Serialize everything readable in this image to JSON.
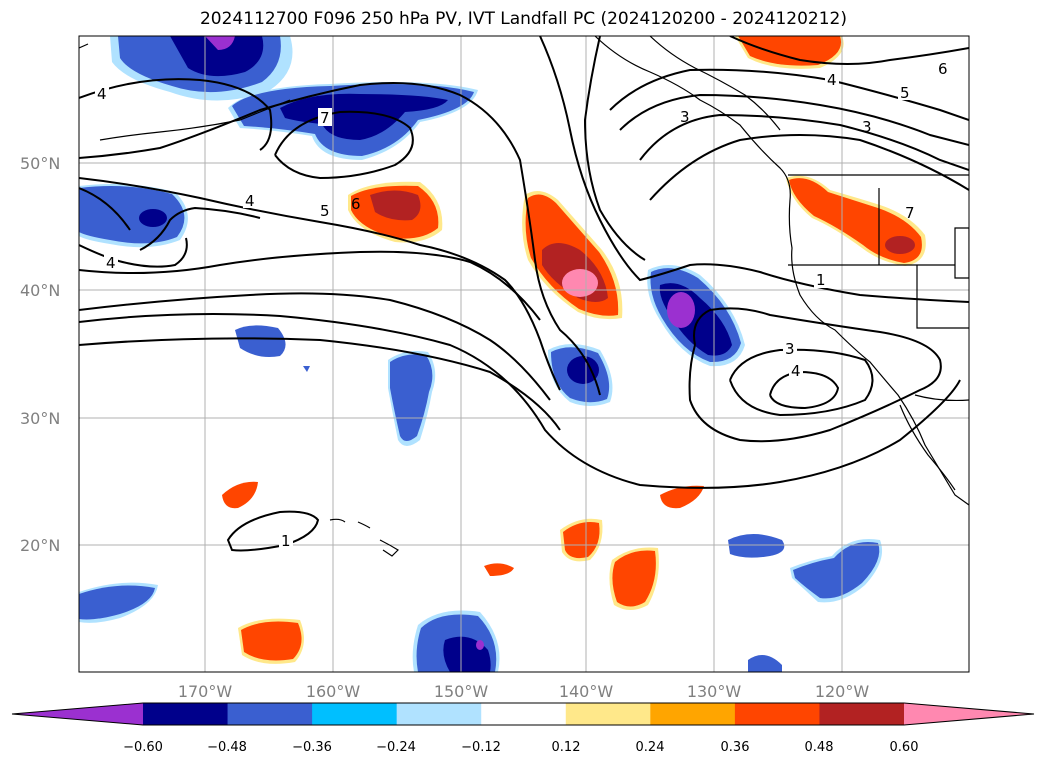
{
  "title": "2024112700 F096 250 hPa PV, IVT Landfall PC (2024120200 - 2024120212)",
  "map": {
    "lat_labels": [
      "50°N",
      "40°N",
      "30°N",
      "20°N"
    ],
    "lon_labels": [
      "170°W",
      "160°W",
      "150°W",
      "140°W",
      "130°W",
      "120°W"
    ]
  },
  "colorbar": {
    "ticks": [
      "−0.60",
      "−0.48",
      "−0.36",
      "−0.24",
      "−0.12",
      "0.12",
      "0.24",
      "0.36",
      "0.48",
      "0.60"
    ],
    "colors": [
      "#9b30d0",
      "#00008b",
      "#3a5fd0",
      "#00bfff",
      "#b0e2ff",
      "#ffffff",
      "#ffe88a",
      "#ffa500",
      "#ff4500",
      "#b22222",
      "#ff88b0"
    ]
  },
  "contour_labels": [
    "4",
    "7",
    "4",
    "5",
    "6",
    "4",
    "1",
    "3",
    "4",
    "1",
    "4",
    "5",
    "6",
    "3",
    "7",
    "3"
  ],
  "colors": {
    "contour": "#000000",
    "grid": "#b0b0b0",
    "coast": "#000000"
  }
}
